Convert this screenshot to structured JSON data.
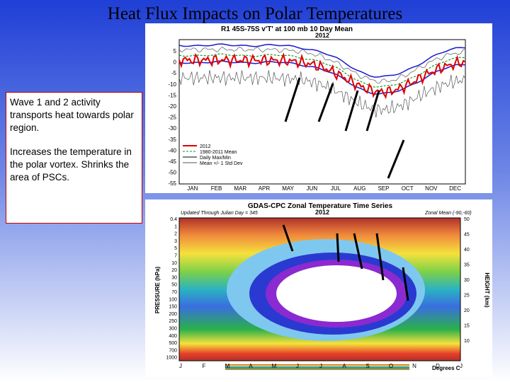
{
  "title": "Heat Flux Impacts on Polar Temperatures",
  "text_box": {
    "paragraphs": [
      "Wave 1 and 2 activity transports heat towards polar region.",
      "Increases the temperature in the polar vortex.  Shrinks the area of PSCs."
    ]
  },
  "top_figure": {
    "title": "R1 45S-75S v'T' at 100 mb 10 Day Mean",
    "year": "2012",
    "yticks": [
      "5",
      "0",
      "-5",
      "-10",
      "-15",
      "-20",
      "-25",
      "-30",
      "-35",
      "-40",
      "-45",
      "-50",
      "-55"
    ],
    "months": [
      "JAN",
      "FEB",
      "MAR",
      "APR",
      "MAY",
      "JUN",
      "JUL",
      "AUG",
      "SEP",
      "OCT",
      "NOV",
      "DEC"
    ],
    "legend": [
      "2012",
      "1980-2011 Mean",
      "Daily Max/Min",
      "Mean +/- 1 Std Dev"
    ]
  },
  "bottom_figure": {
    "title": "GDAS-CPC Zonal Temperature Time Series",
    "subtitle_left": "Updated Through Julian Day = 345",
    "year": "2012",
    "subtitle_right": "Zonal Mean (-90,-60)",
    "y_axis_label": "PRESSURE (hPa)",
    "y2_axis_label": "HEIGHT (km)",
    "pressure_ticks": [
      "0.4",
      "1",
      "2",
      "3",
      "5",
      "7",
      "10",
      "20",
      "30",
      "50",
      "70",
      "100",
      "150",
      "200",
      "250",
      "300",
      "400",
      "500",
      "700",
      "1000"
    ],
    "height_ticks": [
      "50",
      "45",
      "40",
      "35",
      "30",
      "25",
      "20",
      "15",
      "10"
    ],
    "months": [
      "J",
      "F",
      "M",
      "A",
      "M",
      "J",
      "J",
      "A",
      "S",
      "O",
      "N",
      "D",
      "J"
    ],
    "colorbar_label": "Degrees C"
  }
}
